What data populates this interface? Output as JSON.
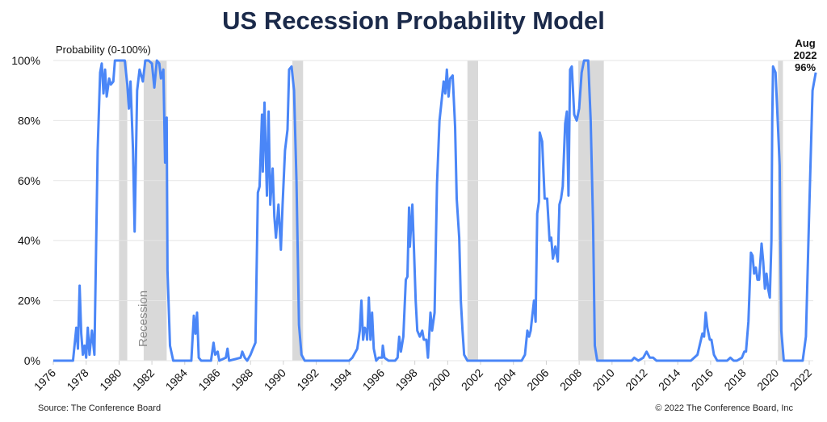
{
  "colors": {
    "line": "#4a86f7",
    "recession": "#d9d9d9",
    "grid": "#e6e6e6",
    "title": "#1b2a4a"
  },
  "footer": {
    "source": "Source: The Conference Board",
    "copyright": "© 2022 The Conference Board, Inc"
  },
  "chart_data": {
    "type": "line",
    "title": "US Recession Probability Model",
    "ylabel": "Probability (0-100%)",
    "xlabel": "",
    "xlim": [
      1976,
      2022.6
    ],
    "ylim": [
      0,
      100
    ],
    "grid": true,
    "x_ticks": [
      "1976",
      "1978",
      "1980",
      "1982",
      "1984",
      "1986",
      "1988",
      "1990",
      "1992",
      "1994",
      "1996",
      "1998",
      "2000",
      "2002",
      "2004",
      "2006",
      "2008",
      "2010",
      "2012",
      "2014",
      "2016",
      "2018",
      "2020",
      "2022"
    ],
    "y_ticks": [
      "0%",
      "20%",
      "40%",
      "60%",
      "80%",
      "100%"
    ],
    "recession_label": "Recession",
    "recessions": [
      [
        1980.0,
        1980.5
      ],
      [
        1981.5,
        1982.9
      ],
      [
        1990.55,
        1991.2
      ],
      [
        2001.2,
        2001.85
      ],
      [
        2007.95,
        2009.5
      ],
      [
        2020.1,
        2020.4
      ]
    ],
    "annotation": {
      "line1": "Aug",
      "line2": "2022",
      "line3": "96%"
    },
    "series": [
      {
        "name": "Recession probability",
        "points": [
          [
            1976,
            0
          ],
          [
            1977.2,
            0
          ],
          [
            1977.4,
            11
          ],
          [
            1977.5,
            4
          ],
          [
            1977.6,
            25
          ],
          [
            1977.7,
            9
          ],
          [
            1977.8,
            2
          ],
          [
            1977.9,
            5
          ],
          [
            1978.0,
            1
          ],
          [
            1978.1,
            11
          ],
          [
            1978.2,
            2
          ],
          [
            1978.35,
            10
          ],
          [
            1978.5,
            2
          ],
          [
            1978.7,
            70
          ],
          [
            1978.85,
            96
          ],
          [
            1978.95,
            99
          ],
          [
            1979.05,
            89
          ],
          [
            1979.15,
            97
          ],
          [
            1979.25,
            88
          ],
          [
            1979.4,
            94
          ],
          [
            1979.5,
            92
          ],
          [
            1979.65,
            93
          ],
          [
            1979.75,
            100
          ],
          [
            1980.0,
            100
          ],
          [
            1980.35,
            100
          ],
          [
            1980.5,
            92
          ],
          [
            1980.6,
            84
          ],
          [
            1980.7,
            93
          ],
          [
            1980.85,
            70
          ],
          [
            1980.95,
            43
          ],
          [
            1981.1,
            90
          ],
          [
            1981.25,
            97
          ],
          [
            1981.45,
            93
          ],
          [
            1981.6,
            100
          ],
          [
            1981.8,
            100
          ],
          [
            1982.0,
            99
          ],
          [
            1982.15,
            91
          ],
          [
            1982.3,
            100
          ],
          [
            1982.45,
            99
          ],
          [
            1982.55,
            94
          ],
          [
            1982.7,
            97
          ],
          [
            1982.8,
            66
          ],
          [
            1982.9,
            81
          ],
          [
            1982.95,
            30
          ],
          [
            1983.1,
            5
          ],
          [
            1983.3,
            0
          ],
          [
            1984.4,
            0
          ],
          [
            1984.55,
            15
          ],
          [
            1984.65,
            9
          ],
          [
            1984.75,
            16
          ],
          [
            1984.85,
            1
          ],
          [
            1985.0,
            0
          ],
          [
            1985.6,
            0
          ],
          [
            1985.75,
            6
          ],
          [
            1985.85,
            2
          ],
          [
            1986.0,
            3
          ],
          [
            1986.1,
            0
          ],
          [
            1986.5,
            1
          ],
          [
            1986.6,
            4
          ],
          [
            1986.7,
            0
          ],
          [
            1987.4,
            1
          ],
          [
            1987.5,
            3
          ],
          [
            1987.65,
            1
          ],
          [
            1987.8,
            0
          ],
          [
            1988.0,
            2
          ],
          [
            1988.15,
            4
          ],
          [
            1988.3,
            6
          ],
          [
            1988.45,
            56
          ],
          [
            1988.55,
            58
          ],
          [
            1988.7,
            82
          ],
          [
            1988.75,
            63
          ],
          [
            1988.85,
            86
          ],
          [
            1989.0,
            55
          ],
          [
            1989.1,
            83
          ],
          [
            1989.2,
            52
          ],
          [
            1989.35,
            64
          ],
          [
            1989.45,
            48
          ],
          [
            1989.55,
            41
          ],
          [
            1989.7,
            52
          ],
          [
            1989.85,
            37
          ],
          [
            1989.95,
            52
          ],
          [
            1990.1,
            70
          ],
          [
            1990.25,
            77
          ],
          [
            1990.35,
            97
          ],
          [
            1990.5,
            98
          ],
          [
            1990.65,
            90
          ],
          [
            1990.8,
            60
          ],
          [
            1990.95,
            12
          ],
          [
            1991.1,
            2
          ],
          [
            1991.3,
            0
          ],
          [
            1994.0,
            0
          ],
          [
            1994.2,
            1
          ],
          [
            1994.5,
            4
          ],
          [
            1994.65,
            10
          ],
          [
            1994.75,
            20
          ],
          [
            1994.85,
            7
          ],
          [
            1994.95,
            11
          ],
          [
            1995.05,
            10
          ],
          [
            1995.1,
            7
          ],
          [
            1995.2,
            21
          ],
          [
            1995.3,
            7
          ],
          [
            1995.4,
            16
          ],
          [
            1995.5,
            4
          ],
          [
            1995.65,
            0
          ],
          [
            1995.8,
            1
          ],
          [
            1996.0,
            1
          ],
          [
            1996.05,
            5
          ],
          [
            1996.15,
            1
          ],
          [
            1996.4,
            0
          ],
          [
            1996.8,
            0
          ],
          [
            1996.95,
            1
          ],
          [
            1997.05,
            8
          ],
          [
            1997.15,
            3
          ],
          [
            1997.3,
            8
          ],
          [
            1997.45,
            27
          ],
          [
            1997.55,
            28
          ],
          [
            1997.65,
            51
          ],
          [
            1997.7,
            38
          ],
          [
            1997.85,
            52
          ],
          [
            1997.95,
            37
          ],
          [
            1998.05,
            20
          ],
          [
            1998.15,
            10
          ],
          [
            1998.3,
            8
          ],
          [
            1998.45,
            10
          ],
          [
            1998.55,
            7
          ],
          [
            1998.7,
            7
          ],
          [
            1998.8,
            1
          ],
          [
            1998.95,
            16
          ],
          [
            1999.05,
            10
          ],
          [
            1999.2,
            16
          ],
          [
            1999.35,
            59
          ],
          [
            1999.5,
            80
          ],
          [
            1999.6,
            85
          ],
          [
            1999.75,
            93
          ],
          [
            1999.85,
            89
          ],
          [
            1999.95,
            97
          ],
          [
            2000.05,
            88
          ],
          [
            2000.15,
            94
          ],
          [
            2000.3,
            95
          ],
          [
            2000.45,
            78
          ],
          [
            2000.55,
            54
          ],
          [
            2000.7,
            41
          ],
          [
            2000.8,
            20
          ],
          [
            2000.9,
            10
          ],
          [
            2001.0,
            2
          ],
          [
            2001.2,
            0
          ],
          [
            2001.6,
            0
          ],
          [
            2001.9,
            0
          ],
          [
            2004.5,
            0
          ],
          [
            2004.7,
            2
          ],
          [
            2004.85,
            10
          ],
          [
            2004.95,
            8
          ],
          [
            2005.05,
            10
          ],
          [
            2005.15,
            15
          ],
          [
            2005.25,
            20
          ],
          [
            2005.35,
            13
          ],
          [
            2005.45,
            49
          ],
          [
            2005.55,
            53
          ],
          [
            2005.6,
            76
          ],
          [
            2005.75,
            73
          ],
          [
            2005.9,
            54
          ],
          [
            2006.05,
            54
          ],
          [
            2006.2,
            40
          ],
          [
            2006.3,
            41
          ],
          [
            2006.4,
            34
          ],
          [
            2006.55,
            38
          ],
          [
            2006.7,
            33
          ],
          [
            2006.8,
            52
          ],
          [
            2006.9,
            54
          ],
          [
            2007.0,
            58
          ],
          [
            2007.15,
            79
          ],
          [
            2007.25,
            83
          ],
          [
            2007.35,
            55
          ],
          [
            2007.45,
            97
          ],
          [
            2007.55,
            98
          ],
          [
            2007.7,
            82
          ],
          [
            2007.85,
            80
          ],
          [
            2008.0,
            84
          ],
          [
            2008.15,
            96
          ],
          [
            2008.3,
            100
          ],
          [
            2008.55,
            100
          ],
          [
            2008.7,
            80
          ],
          [
            2008.85,
            45
          ],
          [
            2008.95,
            5
          ],
          [
            2009.1,
            0
          ],
          [
            2011.2,
            0
          ],
          [
            2011.35,
            1
          ],
          [
            2011.6,
            0
          ],
          [
            2011.9,
            1
          ],
          [
            2012.1,
            3
          ],
          [
            2012.3,
            1
          ],
          [
            2012.5,
            1
          ],
          [
            2012.7,
            0
          ],
          [
            2014.8,
            0
          ],
          [
            2015.0,
            1
          ],
          [
            2015.2,
            2
          ],
          [
            2015.5,
            9
          ],
          [
            2015.6,
            8
          ],
          [
            2015.7,
            16
          ],
          [
            2015.8,
            11
          ],
          [
            2015.95,
            7
          ],
          [
            2016.05,
            7
          ],
          [
            2016.2,
            2
          ],
          [
            2016.4,
            0
          ],
          [
            2017.0,
            0
          ],
          [
            2017.2,
            1
          ],
          [
            2017.4,
            0
          ],
          [
            2017.6,
            0
          ],
          [
            2017.9,
            1
          ],
          [
            2018.05,
            3
          ],
          [
            2018.15,
            3
          ],
          [
            2018.3,
            13
          ],
          [
            2018.45,
            36
          ],
          [
            2018.55,
            35
          ],
          [
            2018.65,
            29
          ],
          [
            2018.75,
            31
          ],
          [
            2018.85,
            27
          ],
          [
            2018.95,
            27
          ],
          [
            2019.1,
            39
          ],
          [
            2019.2,
            33
          ],
          [
            2019.3,
            24
          ],
          [
            2019.4,
            29
          ],
          [
            2019.5,
            24
          ],
          [
            2019.6,
            21
          ],
          [
            2019.7,
            40
          ],
          [
            2019.75,
            80
          ],
          [
            2019.8,
            98
          ],
          [
            2019.95,
            96
          ],
          [
            2020.1,
            78
          ],
          [
            2020.2,
            65
          ],
          [
            2020.3,
            10
          ],
          [
            2020.45,
            0
          ],
          [
            2021.6,
            0
          ],
          [
            2021.8,
            8
          ],
          [
            2022.0,
            50
          ],
          [
            2022.2,
            90
          ],
          [
            2022.4,
            96
          ]
        ]
      }
    ]
  }
}
